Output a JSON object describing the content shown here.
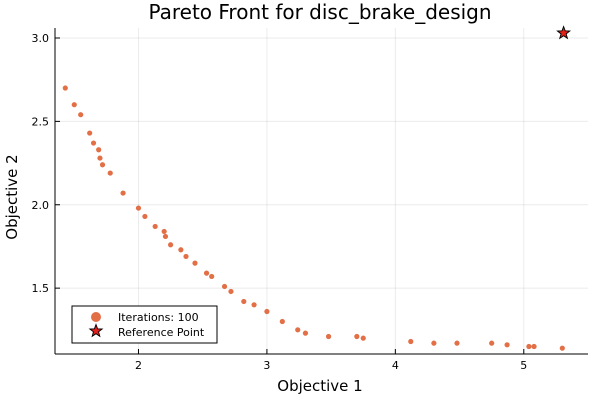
{
  "chart_data": {
    "type": "scatter",
    "title": "Pareto Front for disc_brake_design",
    "xlabel": "Objective 1",
    "ylabel": "Objective 2",
    "xlim": [
      1.35,
      5.5
    ],
    "ylim": [
      1.105,
      3.06
    ],
    "xticks": [
      2,
      3,
      4,
      5
    ],
    "yticks": [
      1.5,
      2.0,
      2.5,
      3.0
    ],
    "xtick_labels": [
      "2",
      "3",
      "4",
      "5"
    ],
    "ytick_labels": [
      "1.5",
      "2.0",
      "2.5",
      "3.0"
    ],
    "grid": true,
    "legend_position": "bottom-left",
    "series": [
      {
        "name": "Iterations: 100",
        "marker": "circle",
        "color": "#e26f46",
        "x": [
          1.43,
          1.5,
          1.55,
          1.62,
          1.65,
          1.69,
          1.7,
          1.72,
          1.78,
          1.88,
          2.0,
          2.05,
          2.13,
          2.2,
          2.21,
          2.25,
          2.33,
          2.37,
          2.44,
          2.53,
          2.57,
          2.67,
          2.72,
          2.82,
          2.9,
          3.0,
          3.12,
          3.24,
          3.3,
          3.48,
          3.7,
          3.75,
          4.12,
          4.3,
          4.48,
          4.75,
          4.87,
          5.04,
          5.08,
          5.3
        ],
        "y": [
          2.7,
          2.6,
          2.54,
          2.43,
          2.37,
          2.33,
          2.28,
          2.24,
          2.19,
          2.07,
          1.98,
          1.93,
          1.87,
          1.84,
          1.81,
          1.76,
          1.73,
          1.69,
          1.65,
          1.59,
          1.57,
          1.51,
          1.48,
          1.42,
          1.4,
          1.36,
          1.3,
          1.25,
          1.23,
          1.21,
          1.21,
          1.2,
          1.18,
          1.17,
          1.17,
          1.17,
          1.16,
          1.15,
          1.15,
          1.14
        ]
      },
      {
        "name": "Reference Point",
        "marker": "star",
        "color": "#e0201b",
        "x": [
          5.31
        ],
        "y": [
          3.03
        ]
      }
    ]
  }
}
